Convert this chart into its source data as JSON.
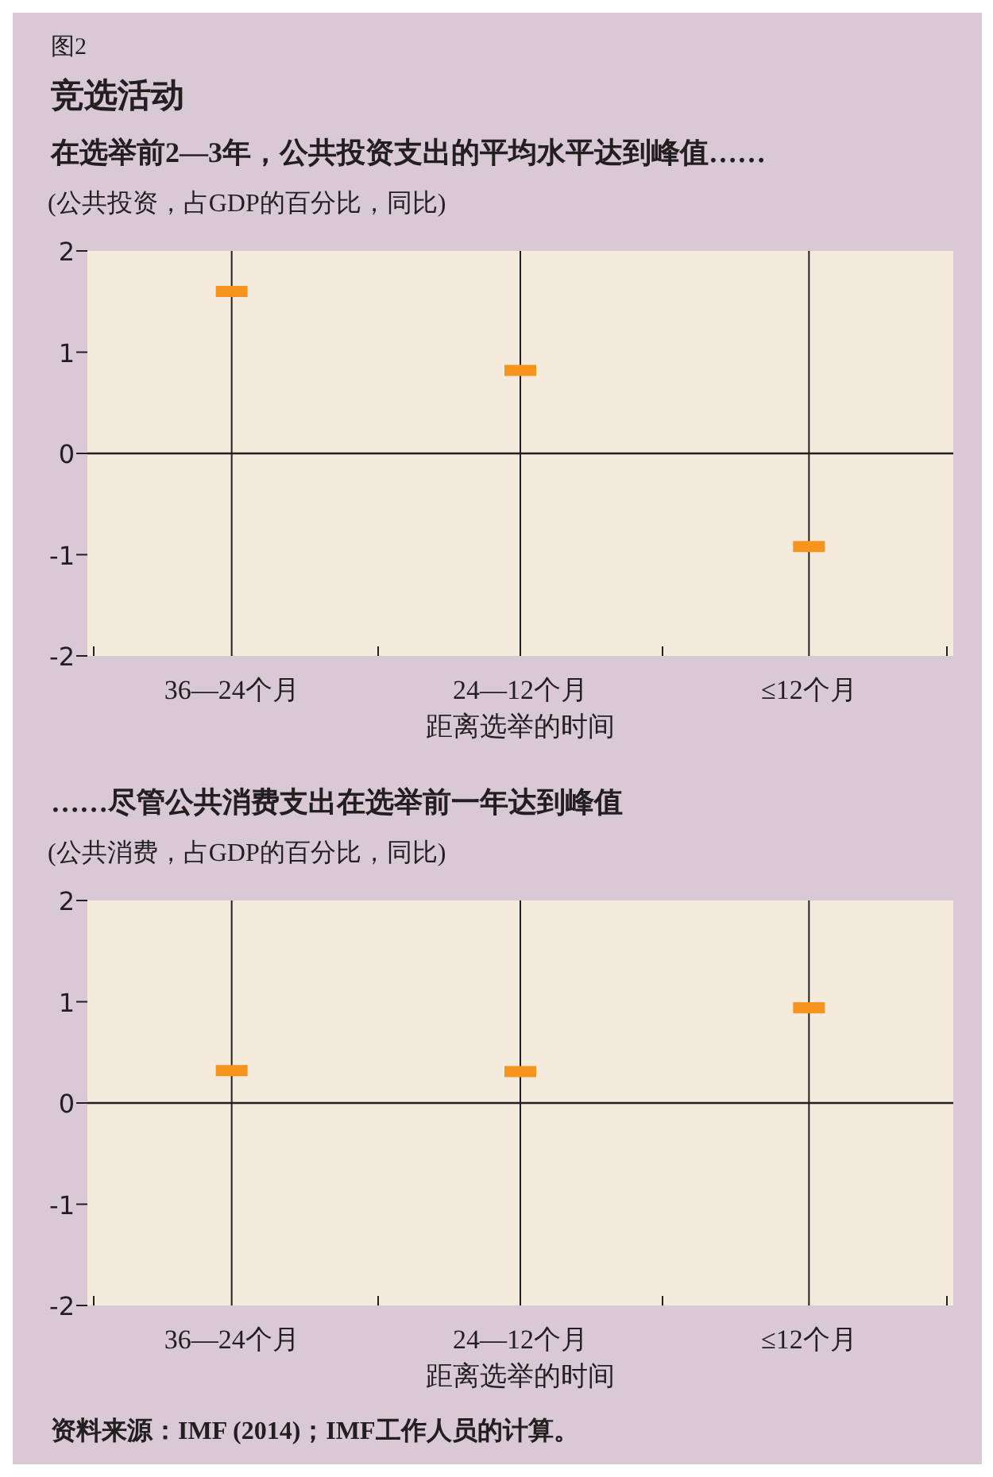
{
  "chart_data": [
    {
      "type": "scatter",
      "title": "竞选活动",
      "subtitle": "在选举前2—3年，公共投资支出的平均水平达到峰值……",
      "ylabel": "(公共投资，占GDP的百分比，同比)",
      "xlabel": "距离选举的时间",
      "annotations": [
        "图2"
      ],
      "categories": [
        "36—24个月",
        "24—12个月",
        "≤12个月"
      ],
      "series": [
        {
          "color": "#f7941d",
          "values": [
            1.6,
            0.82,
            -0.92
          ]
        }
      ],
      "ylim": [
        -2,
        2
      ],
      "yticks": [
        -2,
        -1,
        0,
        1,
        2
      ],
      "grid": "x",
      "ref_lines": [
        {
          "axis": "y",
          "value": 0
        }
      ]
    },
    {
      "type": "scatter",
      "title": "……尽管公共消费支出在选举前一年达到峰值",
      "ylabel": "(公共消费，占GDP的百分比，同比)",
      "xlabel": "距离选举的时间",
      "annotations": [
        "资料来源：IMF (2014)；IMF工作人员的计算。"
      ],
      "categories": [
        "36—24个月",
        "24—12个月",
        "≤12个月"
      ],
      "series": [
        {
          "color": "#f7941d",
          "values": [
            0.32,
            0.31,
            0.94
          ]
        }
      ],
      "ylim": [
        -2,
        2
      ],
      "yticks": [
        -2,
        -1,
        0,
        1,
        2
      ],
      "grid": "x",
      "ref_lines": [
        {
          "axis": "y",
          "value": 0
        }
      ]
    }
  ]
}
